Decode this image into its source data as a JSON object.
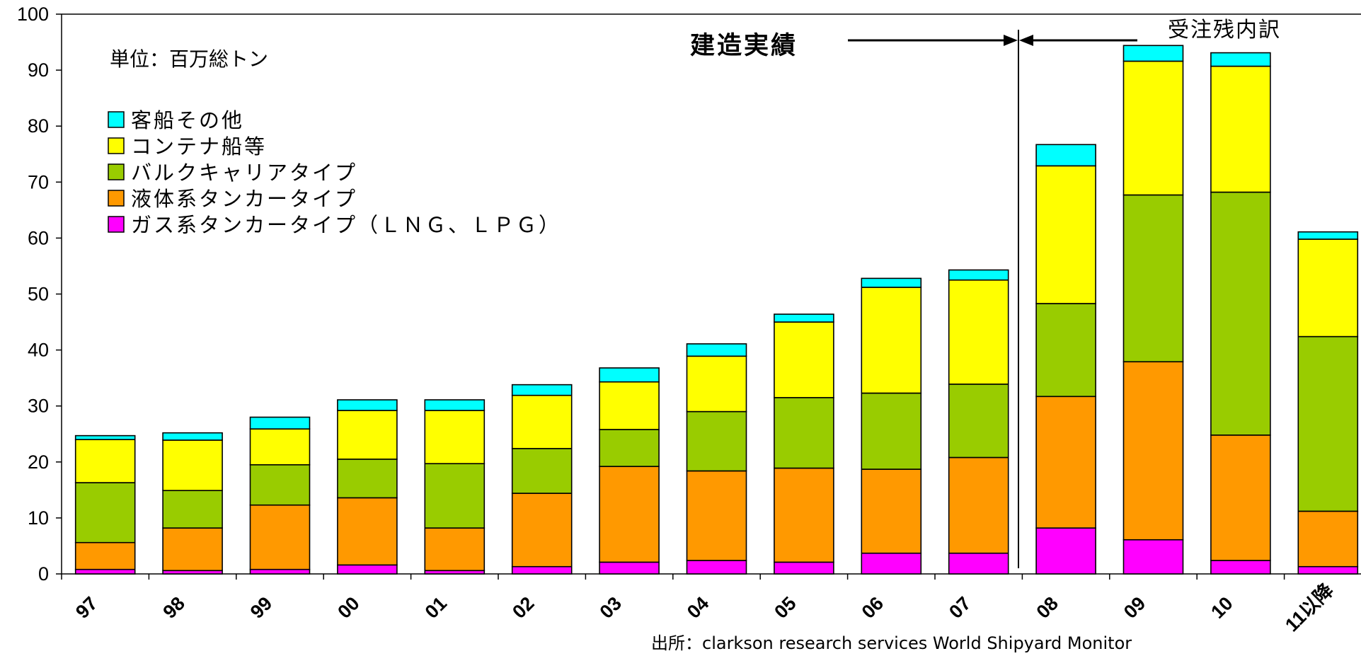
{
  "chart_data": {
    "type": "bar",
    "stacked": true,
    "categories": [
      "97",
      "98",
      "99",
      "00",
      "01",
      "02",
      "03",
      "04",
      "05",
      "06",
      "07",
      "08",
      "09",
      "10",
      "11以降"
    ],
    "series": [
      {
        "name": "ガス系タンカータイプ（ＬＮＧ、ＬＰＧ）",
        "color": "#FF00FF",
        "values": [
          0.8,
          0.6,
          0.8,
          1.6,
          0.6,
          1.3,
          2.1,
          2.4,
          2.1,
          3.7,
          3.7,
          8.2,
          6.1,
          2.4,
          1.3
        ]
      },
      {
        "name": "液体系タンカータイプ",
        "color": "#FF9900",
        "values": [
          4.8,
          7.6,
          11.5,
          12.0,
          7.6,
          13.1,
          17.1,
          16.0,
          16.8,
          15.0,
          17.1,
          23.5,
          31.8,
          22.4,
          9.9
        ]
      },
      {
        "name": "バルクキャリアタイプ",
        "color": "#99CC00",
        "values": [
          10.7,
          6.7,
          7.2,
          6.9,
          11.5,
          8.0,
          6.6,
          10.6,
          12.6,
          13.6,
          13.1,
          16.6,
          29.8,
          43.4,
          31.2
        ]
      },
      {
        "name": "コンテナ船等",
        "color": "#FFFF00",
        "values": [
          7.7,
          9.0,
          6.4,
          8.7,
          9.5,
          9.5,
          8.5,
          9.9,
          13.5,
          18.9,
          18.6,
          24.6,
          23.9,
          22.5,
          17.4
        ]
      },
      {
        "name": "客船その他",
        "color": "#00FFFF",
        "values": [
          0.7,
          1.3,
          2.1,
          1.9,
          1.9,
          1.9,
          2.5,
          2.2,
          1.4,
          1.6,
          1.8,
          3.8,
          2.8,
          2.4,
          1.3
        ]
      }
    ],
    "ylim": [
      0,
      100
    ],
    "yticks": [
      0,
      10,
      20,
      30,
      40,
      50,
      60,
      70,
      80,
      90,
      100
    ],
    "unit_label": "単位：百万総トン",
    "annotations": {
      "built": "建造実績",
      "backlog": "受注残内訳",
      "source": "出所：clarkson research services World Shipyard Monitor"
    },
    "legend_position": "top-left"
  }
}
